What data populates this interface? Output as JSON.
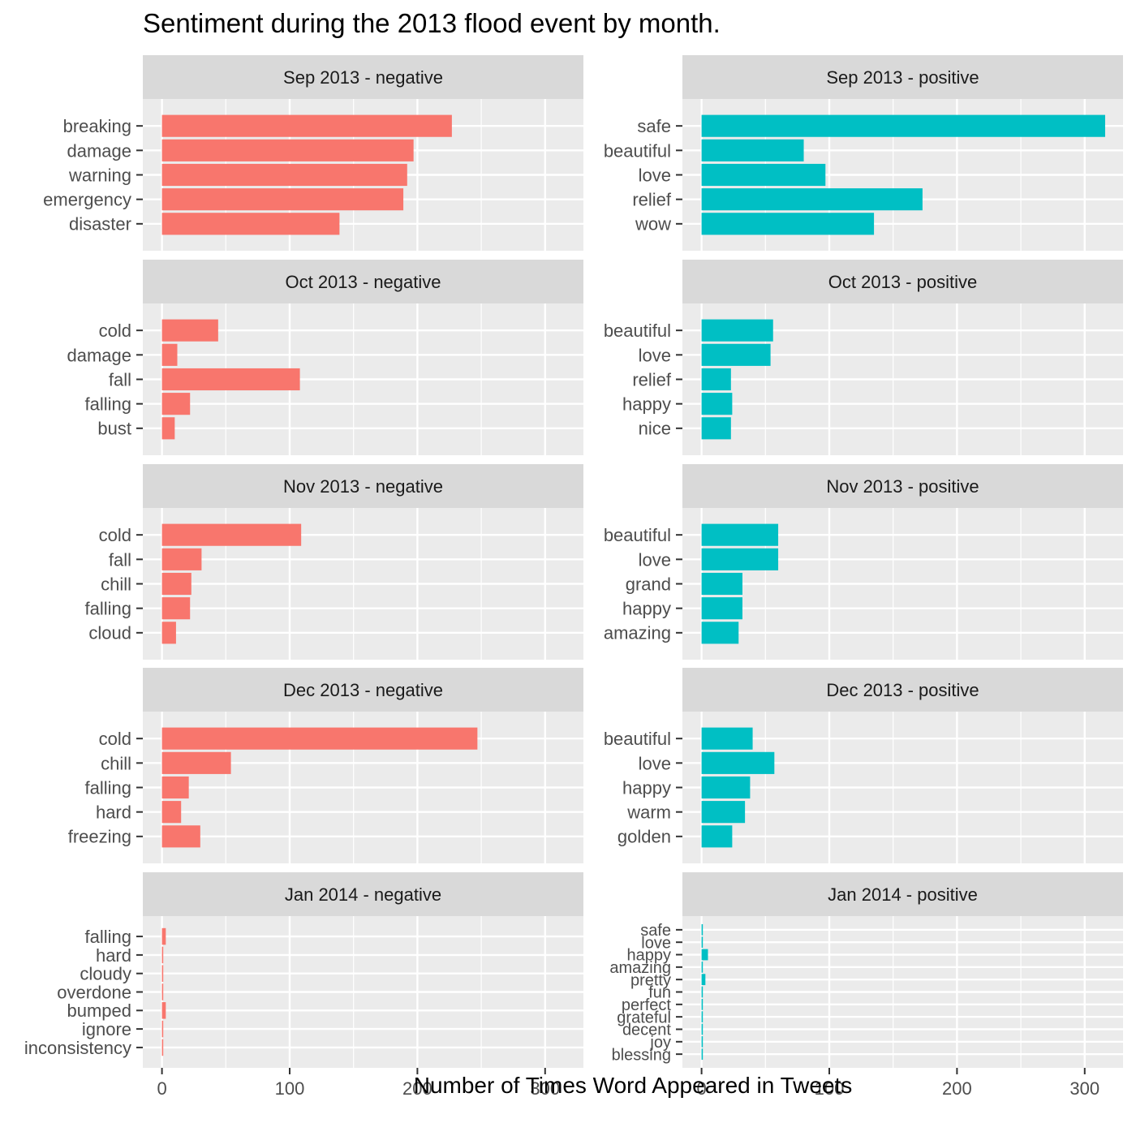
{
  "chart_data": {
    "type": "bar",
    "orientation": "horizontal",
    "title": "Sentiment during the 2013 flood event by month.",
    "xlabel": "Number of Times Word Appeared in Tweets",
    "ylabel": "",
    "xlim": [
      -15,
      330
    ],
    "xticks": [
      0,
      100,
      200,
      300
    ],
    "grid": true,
    "legend": "none",
    "colors": {
      "negative": "#F8766D",
      "positive": "#00BFC4",
      "panel_bg": "#EBEBEB",
      "strip_bg": "#D9D9D9",
      "grid": "#FFFFFF"
    },
    "panels": [
      {
        "strip": "Sep 2013 - negative",
        "sentiment": "negative",
        "categories": [
          "breaking",
          "damage",
          "warning",
          "emergency",
          "disaster"
        ],
        "values": [
          227,
          197,
          192,
          189,
          139
        ]
      },
      {
        "strip": "Sep 2013 - positive",
        "sentiment": "positive",
        "categories": [
          "safe",
          "beautiful",
          "love",
          "relief",
          "wow"
        ],
        "values": [
          316,
          80,
          97,
          173,
          135
        ]
      },
      {
        "strip": "Oct 2013 - negative",
        "sentiment": "negative",
        "categories": [
          "cold",
          "damage",
          "fall",
          "falling",
          "bust"
        ],
        "values": [
          44,
          12,
          108,
          22,
          10
        ]
      },
      {
        "strip": "Oct 2013 - positive",
        "sentiment": "positive",
        "categories": [
          "beautiful",
          "love",
          "relief",
          "happy",
          "nice"
        ],
        "values": [
          56,
          54,
          23,
          24,
          23
        ]
      },
      {
        "strip": "Nov 2013 - negative",
        "sentiment": "negative",
        "categories": [
          "cold",
          "fall",
          "chill",
          "falling",
          "cloud"
        ],
        "values": [
          109,
          31,
          23,
          22,
          11
        ]
      },
      {
        "strip": "Nov 2013 - positive",
        "sentiment": "positive",
        "categories": [
          "beautiful",
          "love",
          "grand",
          "happy",
          "amazing"
        ],
        "values": [
          60,
          60,
          32,
          32,
          29
        ]
      },
      {
        "strip": "Dec 2013 - negative",
        "sentiment": "negative",
        "categories": [
          "cold",
          "chill",
          "falling",
          "hard",
          "freezing"
        ],
        "values": [
          247,
          54,
          21,
          15,
          30
        ]
      },
      {
        "strip": "Dec 2013 - positive",
        "sentiment": "positive",
        "categories": [
          "beautiful",
          "love",
          "happy",
          "warm",
          "golden"
        ],
        "values": [
          40,
          57,
          38,
          34,
          24
        ]
      },
      {
        "strip": "Jan 2014 - negative",
        "sentiment": "negative",
        "categories": [
          "falling",
          "hard",
          "cloudy",
          "overdone",
          "bumped",
          "ignore",
          "inconsistency"
        ],
        "values": [
          3,
          1,
          1,
          1,
          3,
          1,
          1
        ]
      },
      {
        "strip": "Jan 2014 - positive",
        "sentiment": "positive",
        "categories": [
          "safe",
          "love",
          "happy",
          "amazing",
          "pretty",
          "fun",
          "perfect",
          "grateful",
          "decent",
          "joy",
          "blessing"
        ],
        "values": [
          1,
          1,
          5,
          1,
          3,
          1,
          1,
          1,
          1,
          1,
          1
        ]
      }
    ]
  }
}
